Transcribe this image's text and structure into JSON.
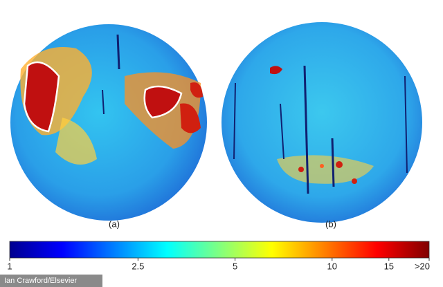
{
  "chart_data": {
    "type": "colorbar",
    "panels": [
      "(a)",
      "(b)"
    ],
    "xlim": [
      1,
      20
    ],
    "log_scale": true,
    "xticks": [
      1,
      2.5,
      5,
      10,
      15,
      {
        "value": 20,
        "label": ">20"
      }
    ],
    "colormap": [
      "#00008f",
      "#0000ff",
      "#0080ff",
      "#00ffff",
      "#80ff80",
      "#ffff00",
      "#ff8000",
      "#ff0000",
      "#800000"
    ]
  },
  "credit": "Ian Crawford/Elsevier"
}
